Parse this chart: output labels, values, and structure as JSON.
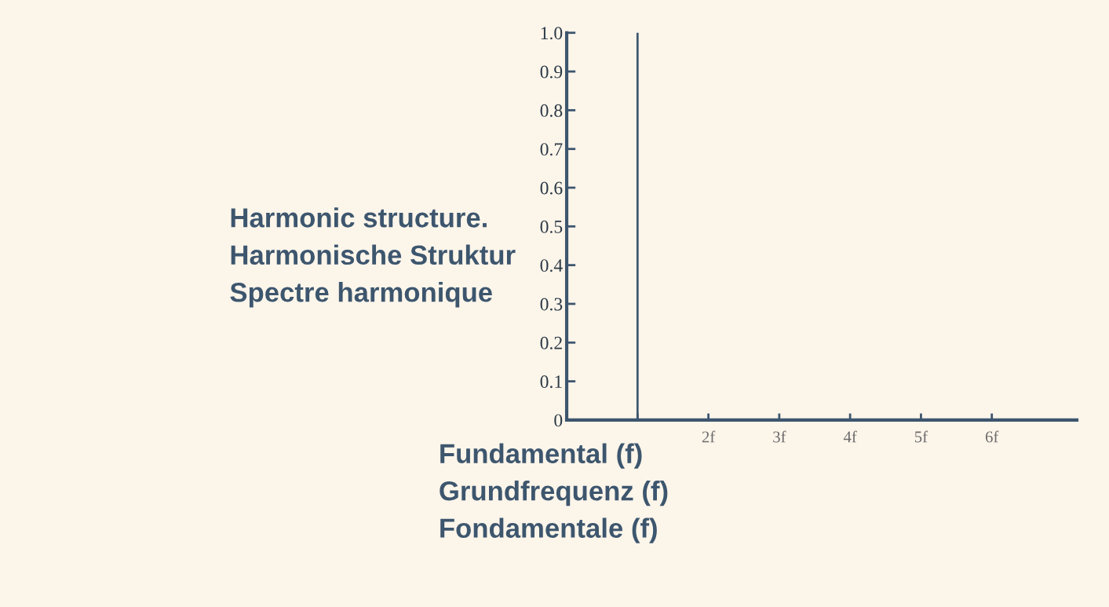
{
  "chart_data": {
    "type": "bar",
    "ylabel": "Harmonic structure.\nHarmonische Struktur\nSpectre harmonique",
    "xlabel": "Fundamental (f)\nGrundfrequenz (f)\nFondamentale (f)",
    "categories": [
      null,
      "2f",
      "3f",
      "4f",
      "5f",
      "6f"
    ],
    "values": [
      1.0,
      0,
      0,
      0,
      0,
      0
    ],
    "color": "#3d566e",
    "ylim": [
      0,
      1.0
    ],
    "yticks": [
      0,
      0.1,
      0.2,
      0.3,
      0.4,
      0.5,
      0.6,
      0.7,
      0.8,
      0.9,
      {
        "value": 1,
        "label": "1.0"
      }
    ],
    "grid": false,
    "legend": false
  }
}
